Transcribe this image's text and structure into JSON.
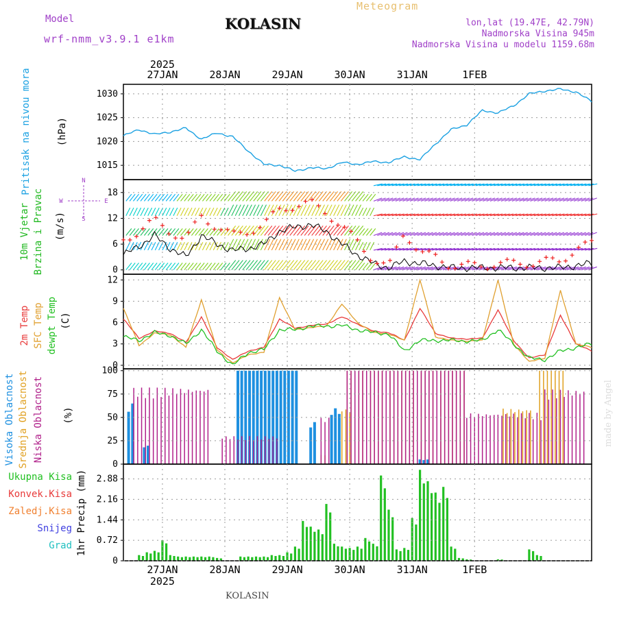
{
  "header": {
    "model_label": "Model",
    "model_name": "wrf-nmm_v3.9.1 e1km",
    "station": "KOLASIN",
    "title": "Meteogram",
    "lonlat": "lon,lat (19.47E, 42.79N)",
    "altitude": "Nadmorska Visina 945m",
    "model_altitude": "Nadmorska Visina u modelu 1159.68m",
    "footer_station": "KOLASIN",
    "watermark": "made by Angel"
  },
  "colors": {
    "pressure": "#1ba1e2",
    "temp2m": "#e83a3a",
    "sfc": "#e0a030",
    "dew": "#22c022",
    "high_cloud": "#1e90e0",
    "mid_cloud": "#e0a020",
    "low_cloud": "#b0208a",
    "precip": "#22c022",
    "wind_black": "#000000",
    "gust_red": "#ee2020",
    "grid": "#999999"
  },
  "chart_data": [
    {
      "type": "line",
      "id": "pressure",
      "ylabel": "(hPa)",
      "side_labels": [
        "Pritisak na nivou mora"
      ],
      "yticks": [
        1015,
        1020,
        1025,
        1030
      ],
      "ylim": [
        1012,
        1032
      ],
      "x_hours": [
        0,
        6,
        12,
        18,
        24,
        30,
        36,
        42,
        48,
        54,
        60,
        66,
        72,
        78,
        84,
        90,
        96,
        102,
        108,
        114,
        120,
        126,
        132,
        138,
        144,
        150,
        156,
        162,
        168,
        174,
        180
      ],
      "y": [
        1021.2,
        1022.5,
        1021.5,
        1022.0,
        1022.8,
        1020.5,
        1021.8,
        1021.0,
        1018.0,
        1015.2,
        1015.0,
        1013.8,
        1014.5,
        1014.3,
        1015.6,
        1015.2,
        1015.8,
        1015.6,
        1016.8,
        1016.2,
        1019.5,
        1022.5,
        1023.5,
        1026.5,
        1026.0,
        1027.5,
        1030.0,
        1030.6,
        1031.0,
        1030.4,
        1028.4
      ],
      "grid": true
    },
    {
      "type": "line",
      "id": "wind",
      "ylabel": "(m/s)",
      "side_labels": [
        "10m Vjetar",
        "Brzina i Pravac"
      ],
      "compass": [
        "N",
        "W",
        "E",
        "S"
      ],
      "yticks": [
        0,
        6,
        12,
        18
      ],
      "ylim": [
        -1,
        21
      ],
      "x_hours": [
        0,
        6,
        12,
        18,
        24,
        30,
        36,
        42,
        48,
        54,
        60,
        66,
        72,
        78,
        84,
        90,
        96,
        102,
        108,
        114,
        120,
        126,
        132,
        138,
        144,
        150,
        156,
        162,
        168,
        174,
        180
      ],
      "series": [
        {
          "values": [
            3.5,
            5.5,
            8.0,
            5.0,
            3.0,
            8.0,
            6.0,
            4.5,
            5.0,
            6.0,
            9.0,
            10.0,
            10.5,
            9.0,
            6.0,
            3.5,
            1.5,
            0.5,
            2.0,
            1.5,
            1.0,
            0.5,
            0.5,
            0.5,
            0.5,
            0.5,
            0.5,
            0.5,
            0.5,
            1.0,
            1.5
          ]
        },
        {
          "values": [
            7.0,
            9.0,
            11.5,
            9.0,
            7.0,
            12.5,
            10.0,
            8.0,
            9.0,
            10.5,
            14.0,
            15.0,
            15.5,
            13.5,
            10.0,
            6.5,
            2.5,
            0.5,
            9.0,
            4.0,
            3.0,
            1.0,
            1.0,
            1.0,
            1.5,
            1.5,
            1.5,
            2.0,
            2.0,
            5.0,
            6.0
          ]
        }
      ],
      "grid": true
    },
    {
      "type": "line",
      "id": "temperature",
      "ylabel": "(C)",
      "side_labels": [
        "2m Temp",
        "SFC Temp",
        "dewpt Temp"
      ],
      "yticks": [
        0,
        3,
        6,
        9,
        12
      ],
      "ylim": [
        -0.5,
        12.8
      ],
      "x_hours": [
        0,
        6,
        12,
        18,
        24,
        30,
        36,
        42,
        48,
        54,
        60,
        66,
        72,
        78,
        84,
        90,
        96,
        102,
        108,
        114,
        120,
        126,
        132,
        138,
        144,
        150,
        156,
        162,
        168,
        174,
        180
      ],
      "series": [
        {
          "name": "2m Temp",
          "values": [
            6.5,
            3.8,
            4.8,
            4.5,
            3.2,
            6.8,
            2.5,
            0.8,
            2.0,
            2.5,
            6.5,
            5.2,
            5.6,
            5.8,
            6.8,
            5.8,
            4.8,
            4.6,
            3.5,
            8.0,
            4.5,
            3.8,
            3.7,
            3.8,
            7.8,
            3.5,
            1.0,
            1.5,
            7.0,
            3.0,
            2.0
          ]
        },
        {
          "name": "SFC Temp",
          "values": [
            8.0,
            2.8,
            4.5,
            4.3,
            2.5,
            9.2,
            2.2,
            0.3,
            1.5,
            1.8,
            9.5,
            5.0,
            5.3,
            5.5,
            8.6,
            6.0,
            4.6,
            4.4,
            3.5,
            12.0,
            4.0,
            3.5,
            3.4,
            3.5,
            12.0,
            3.0,
            0.5,
            1.0,
            10.5,
            3.0,
            2.5
          ]
        },
        {
          "name": "dewpt Temp",
          "values": [
            4.0,
            3.5,
            4.6,
            4.2,
            3.0,
            5.0,
            2.0,
            0.0,
            1.8,
            2.2,
            5.0,
            5.0,
            5.5,
            5.5,
            5.6,
            5.0,
            4.6,
            4.4,
            2.0,
            3.5,
            3.5,
            3.5,
            3.4,
            3.5,
            5.0,
            3.0,
            1.0,
            0.8,
            2.0,
            2.5,
            3.0
          ]
        }
      ],
      "grid": true
    },
    {
      "type": "bar",
      "id": "clouds",
      "ylabel": "(%)",
      "side_labels": [
        "Visoka Oblacnost",
        "Srednja Oblacnost",
        "Niska Oblacnost"
      ],
      "yticks": [
        0,
        25,
        50,
        75,
        100
      ],
      "ylim": [
        0,
        102
      ],
      "series": [
        {
          "name": "Visoka Oblacnost",
          "segments": [
            [
              2,
              4,
              65
            ],
            [
              8,
              10,
              20
            ],
            [
              44,
              68,
              100
            ],
            [
              72,
              75,
              45
            ],
            [
              80,
              84,
              60
            ],
            [
              114,
              118,
              5
            ]
          ]
        },
        {
          "name": "Srednja Oblacnost",
          "segments": [
            [
              76,
              80,
              10
            ],
            [
              84,
              88,
              60
            ],
            [
              86,
              132,
              100
            ],
            [
              146,
              158,
              60
            ],
            [
              160,
              170,
              100
            ]
          ]
        },
        {
          "name": "Niska Oblacnost",
          "segments": [
            [
              4,
              34,
              82
            ],
            [
              38,
              60,
              30
            ],
            [
              76,
              80,
              50
            ],
            [
              86,
              132,
              100
            ],
            [
              132,
              162,
              55
            ],
            [
              162,
              178,
              80
            ]
          ]
        }
      ],
      "grid": true
    },
    {
      "type": "bar",
      "id": "precip",
      "ylabel": "1hr Precip (mm)",
      "side_labels": [
        "Ukupna Kisa",
        "Konvek.Kisa",
        "Zaledj.Kisa",
        "Snijeg",
        "Grad"
      ],
      "yticks": [
        0,
        0.72,
        1.44,
        2.16,
        2.88
      ],
      "ylim": [
        0,
        3.4
      ],
      "x_hours": [
        6,
        9,
        12,
        15,
        18,
        21,
        24,
        27,
        30,
        33,
        36,
        45,
        48,
        51,
        54,
        57,
        60,
        63,
        66,
        69,
        72,
        75,
        78,
        81,
        84,
        87,
        90,
        93,
        96,
        99,
        102,
        105,
        108,
        111,
        114,
        117,
        120,
        123,
        126,
        129,
        132,
        144,
        156,
        159
      ],
      "values": [
        0.2,
        0.3,
        0.35,
        0.72,
        0.2,
        0.15,
        0.15,
        0.15,
        0.15,
        0.15,
        0.1,
        0.15,
        0.15,
        0.15,
        0.15,
        0.2,
        0.2,
        0.3,
        0.5,
        1.4,
        1.2,
        1.1,
        2.0,
        0.6,
        0.5,
        0.45,
        0.5,
        0.8,
        0.6,
        3.0,
        1.8,
        0.4,
        0.45,
        1.5,
        3.2,
        2.8,
        2.4,
        2.6,
        0.5,
        0.1,
        0.05,
        0.05,
        0.4,
        0.2
      ],
      "grid": true
    }
  ],
  "x_axis": {
    "year": "2025",
    "tick_hours": [
      15,
      39,
      63,
      87,
      111,
      135
    ],
    "tick_labels": [
      "27JAN",
      "28JAN",
      "29JAN",
      "30JAN",
      "31JAN",
      "1FEB"
    ],
    "start_hour": 0,
    "end_hour": 180
  }
}
